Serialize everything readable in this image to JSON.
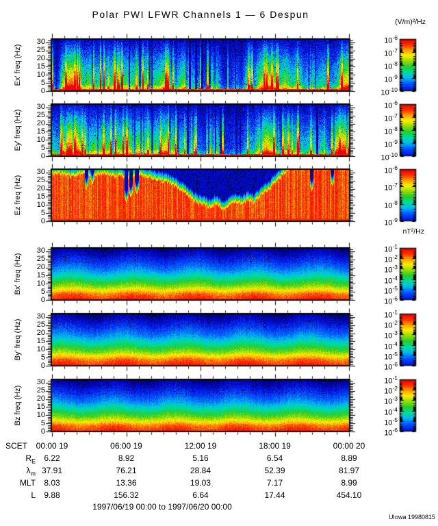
{
  "figure": {
    "title": "Polar PWI LFWR Channels 1 — 6 Despun",
    "credit": "UIowa 19980815",
    "date_range": "1997/06/19 00:00 to 1997/06/20 00:00",
    "units": {
      "electric": "(V/m)²/Hz",
      "magnetic": "nT²/Hz"
    }
  },
  "time_axis": {
    "label": "SCET",
    "tick_labels": [
      "00:00 19",
      "06:00 19",
      "12:00 19",
      "18:00 19",
      "00:00 20"
    ],
    "span_hours": 24,
    "major_tick_hours": 6,
    "minor_tick_hours": 1
  },
  "ephemeris": {
    "rows": [
      {
        "label": "R",
        "sub": "E",
        "values": [
          "6.22",
          "8.92",
          "5.16",
          "6.54",
          "8.89"
        ]
      },
      {
        "label": "λ",
        "sub": "m",
        "values": [
          "37.91",
          "76.21",
          "28.84",
          "52.39",
          "81.97"
        ]
      },
      {
        "label": "MLT",
        "sub": "",
        "values": [
          "8.03",
          "13.36",
          "19.03",
          "7.17",
          "8.99"
        ]
      },
      {
        "label": "L",
        "sub": "",
        "values": [
          "9.88",
          "156.32",
          "6.64",
          "17.44",
          "454.10"
        ]
      }
    ]
  },
  "colormap": [
    [
      0.0,
      "#000022"
    ],
    [
      0.06,
      "#000088"
    ],
    [
      0.16,
      "#0011dd"
    ],
    [
      0.27,
      "#0055ff"
    ],
    [
      0.37,
      "#00bbee"
    ],
    [
      0.46,
      "#00dd99"
    ],
    [
      0.55,
      "#22cc33"
    ],
    [
      0.65,
      "#99dd00"
    ],
    [
      0.74,
      "#ffee00"
    ],
    [
      0.83,
      "#ff9900"
    ],
    [
      0.91,
      "#ff3300"
    ],
    [
      1.0,
      "#ee0000"
    ]
  ],
  "chart_data": [
    {
      "id": "ex",
      "type": "heatmap",
      "ylabel": "Ex' freq (Hz)",
      "ylim": [
        0,
        30
      ],
      "yticks": [
        0,
        5,
        10,
        15,
        20,
        25,
        30
      ],
      "colorbar_exponents": [
        -6,
        -7,
        -8,
        -9,
        -10
      ],
      "render": {
        "style": "streak",
        "seed": 7,
        "activity": [
          0.25,
          0.2,
          0.9,
          0.95,
          0.85,
          0.5,
          0.6,
          0.45,
          0.55,
          0.5,
          0.65,
          0.55,
          0.6,
          0.5,
          0.55,
          0.6,
          0.5,
          0.55,
          0.75,
          0.5,
          0.45,
          0.65,
          0.4,
          0.3,
          0.2,
          0.15,
          0.5,
          0.15,
          0.12,
          0.3,
          0.15,
          0.55,
          0.3,
          0.7,
          0.8,
          0.75,
          0.5,
          0.65,
          0.45,
          0.6,
          0.3,
          0.55,
          0.35,
          0.5,
          0.3,
          0.4,
          0.75,
          0.85
        ]
      }
    },
    {
      "id": "ey",
      "type": "heatmap",
      "ylabel": "Ey' freq (Hz)",
      "ylim": [
        0,
        30
      ],
      "yticks": [
        0,
        5,
        10,
        15,
        20,
        25,
        30
      ],
      "colorbar_exponents": [
        -6,
        -7,
        -8,
        -9,
        -10
      ],
      "render": {
        "style": "streak",
        "seed": 13,
        "activity": [
          0.45,
          0.35,
          0.95,
          1.0,
          0.9,
          0.55,
          0.5,
          0.6,
          0.5,
          0.6,
          0.7,
          0.55,
          0.65,
          0.6,
          0.7,
          0.6,
          0.55,
          0.65,
          0.8,
          0.6,
          0.4,
          0.5,
          0.35,
          0.3,
          0.2,
          0.18,
          0.55,
          0.2,
          0.15,
          0.25,
          0.2,
          0.4,
          0.35,
          0.75,
          0.85,
          0.7,
          0.55,
          0.6,
          0.5,
          0.55,
          0.35,
          0.5,
          0.4,
          0.45,
          0.25,
          0.85,
          0.95,
          0.95
        ]
      }
    },
    {
      "id": "ez",
      "type": "heatmap",
      "ylabel": "Ez freq (Hz)",
      "ylim": [
        0,
        30
      ],
      "yticks": [
        0,
        5,
        10,
        15,
        20,
        25,
        30
      ],
      "colorbar_exponents": [
        -6,
        -7,
        -8,
        -9
      ],
      "render": {
        "style": "boundary",
        "seed": 21,
        "cutoff_hz": [
          31,
          31,
          30,
          29,
          30,
          31,
          30,
          30,
          31,
          30,
          29,
          30,
          28,
          29,
          30,
          29,
          28,
          27,
          26,
          24,
          22,
          19,
          16,
          13,
          12,
          10,
          13,
          9,
          11,
          14,
          12,
          15,
          13,
          17,
          20,
          24,
          28,
          32,
          34,
          34,
          34,
          34,
          34,
          34,
          34,
          34,
          34,
          34
        ],
        "dips": [
          {
            "t": 0.115,
            "f": 21
          },
          {
            "t": 0.135,
            "f": 24
          },
          {
            "t": 0.25,
            "f": 13
          },
          {
            "t": 0.265,
            "f": 16
          },
          {
            "t": 0.285,
            "f": 18
          },
          {
            "t": 0.875,
            "f": 20
          },
          {
            "t": 0.945,
            "f": 23
          }
        ]
      }
    },
    {
      "id": "bx",
      "type": "heatmap",
      "ylabel": "Bx' freq (Hz)",
      "ylim": [
        0,
        30
      ],
      "yticks": [
        0,
        5,
        10,
        15,
        20,
        25,
        30
      ],
      "colorbar_exponents": [
        -1,
        -2,
        -3,
        -4,
        -5,
        -6
      ],
      "render": {
        "style": "banded",
        "seed": 31,
        "profile_freqs": [
          0,
          4,
          6,
          9,
          14,
          18,
          25,
          31
        ],
        "profile_values": [
          0.95,
          0.86,
          0.76,
          0.62,
          0.46,
          0.34,
          0.2,
          0.08
        ]
      }
    },
    {
      "id": "by",
      "type": "heatmap",
      "ylabel": "By' freq (Hz)",
      "ylim": [
        0,
        30
      ],
      "yticks": [
        0,
        5,
        10,
        15,
        20,
        25,
        30
      ],
      "colorbar_exponents": [
        -1,
        -2,
        -3,
        -4,
        -5,
        -6
      ],
      "render": {
        "style": "banded",
        "seed": 32,
        "profile_freqs": [
          0,
          4,
          6,
          9,
          14,
          18,
          25,
          31
        ],
        "profile_values": [
          0.95,
          0.86,
          0.76,
          0.62,
          0.46,
          0.34,
          0.2,
          0.08
        ]
      }
    },
    {
      "id": "bz",
      "type": "heatmap",
      "ylabel": "Bz freq (Hz)",
      "ylim": [
        0,
        30
      ],
      "yticks": [
        0,
        5,
        10,
        15,
        20,
        25,
        30
      ],
      "colorbar_exponents": [
        -1,
        -2,
        -3,
        -4,
        -5,
        -6
      ],
      "render": {
        "style": "banded",
        "seed": 33,
        "profile_freqs": [
          0,
          4,
          6,
          9,
          14,
          18,
          25,
          31
        ],
        "profile_values": [
          0.95,
          0.86,
          0.76,
          0.62,
          0.46,
          0.34,
          0.2,
          0.08
        ]
      }
    }
  ]
}
